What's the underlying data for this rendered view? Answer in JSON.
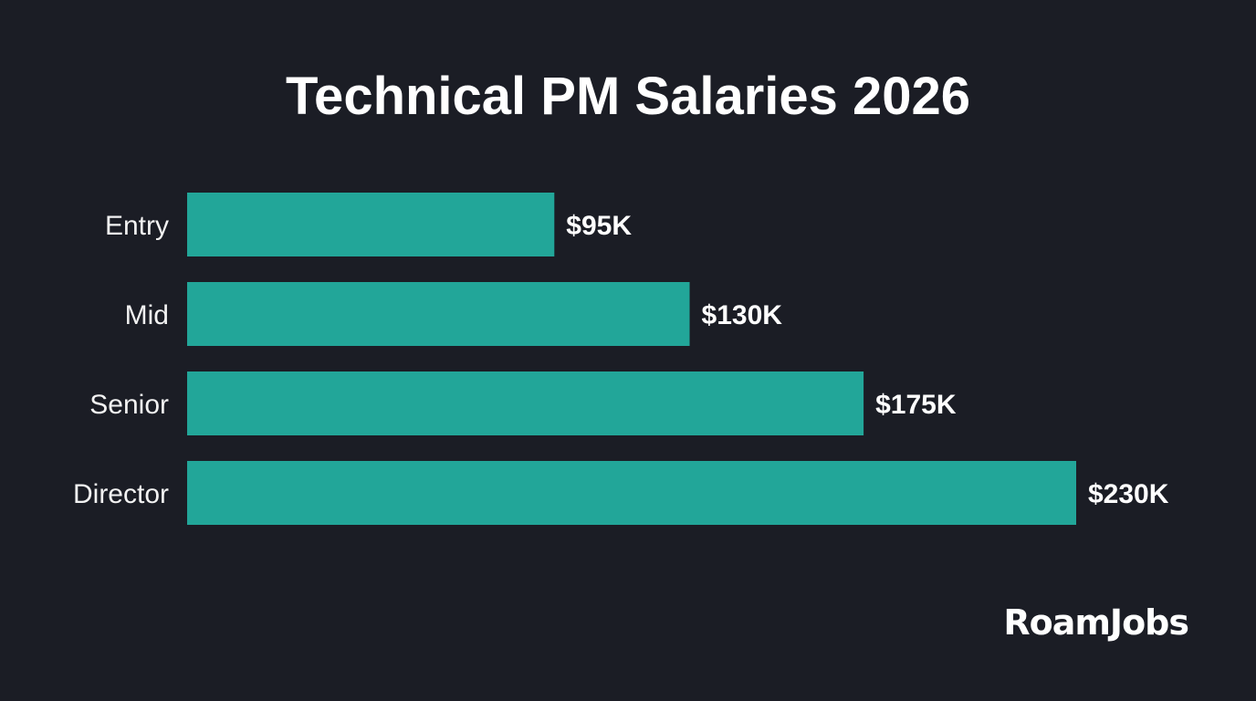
{
  "chart_data": {
    "type": "bar",
    "orientation": "horizontal",
    "title": "Technical PM Salaries 2026",
    "categories": [
      "Entry",
      "Mid",
      "Senior",
      "Director"
    ],
    "values": [
      95,
      130,
      175,
      230
    ],
    "data_labels": [
      "$95K",
      "$130K",
      "$175K",
      "$230K"
    ],
    "unit": "thousand USD",
    "xlim": [
      0,
      230
    ],
    "grid": false,
    "legend": "none",
    "bar_color": "#22a699",
    "background": "#1b1d25"
  },
  "brand": {
    "logo_text": "RoamJobs"
  }
}
